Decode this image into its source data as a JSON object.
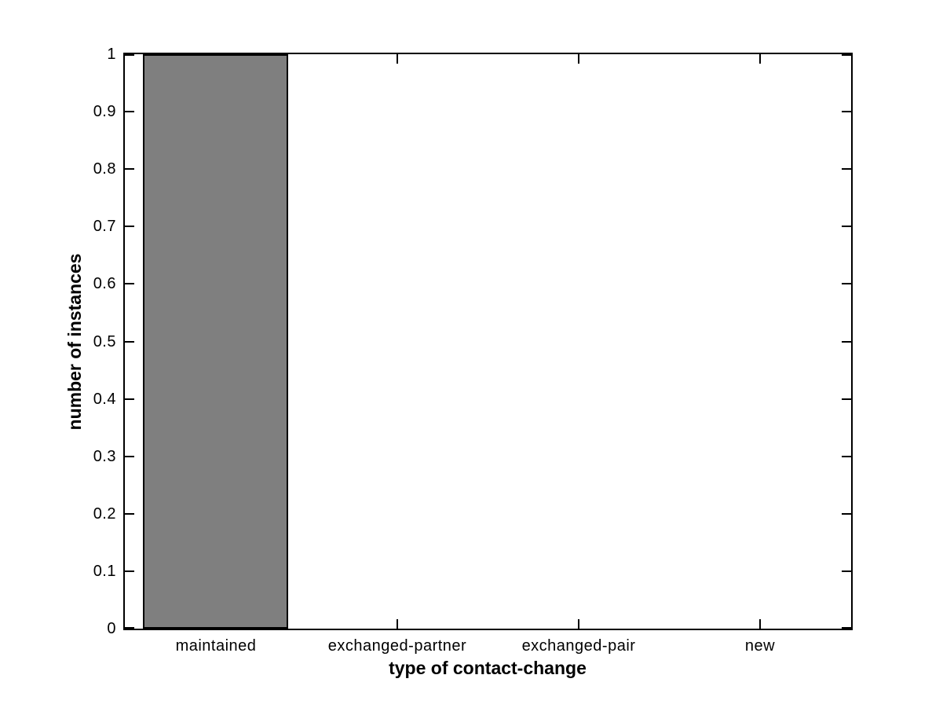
{
  "figure": {
    "background_color": "#ffffff",
    "axis_line_color": "#000000"
  },
  "chart_data": {
    "type": "bar",
    "categories": [
      "maintained",
      "exchanged-partner",
      "exchanged-pair",
      "new"
    ],
    "values": [
      1,
      0,
      0,
      0
    ],
    "title": "",
    "xlabel": "type of contact-change",
    "ylabel": "number of instances",
    "ylim": [
      0,
      1
    ],
    "ytick_values": [
      0,
      0.1,
      0.2,
      0.3,
      0.4,
      0.5,
      0.6,
      0.7,
      0.8,
      0.9,
      1
    ],
    "ytick_labels": [
      "0",
      "0.1",
      "0.2",
      "0.3",
      "0.4",
      "0.5",
      "0.6",
      "0.7",
      "0.8",
      "0.9",
      "1"
    ],
    "bar_color": "#7f7f7f",
    "bar_edge_color": "#000000",
    "bar_width_fraction": 0.8,
    "grid": false,
    "legend": null,
    "tick_direction": "in",
    "box": true
  }
}
